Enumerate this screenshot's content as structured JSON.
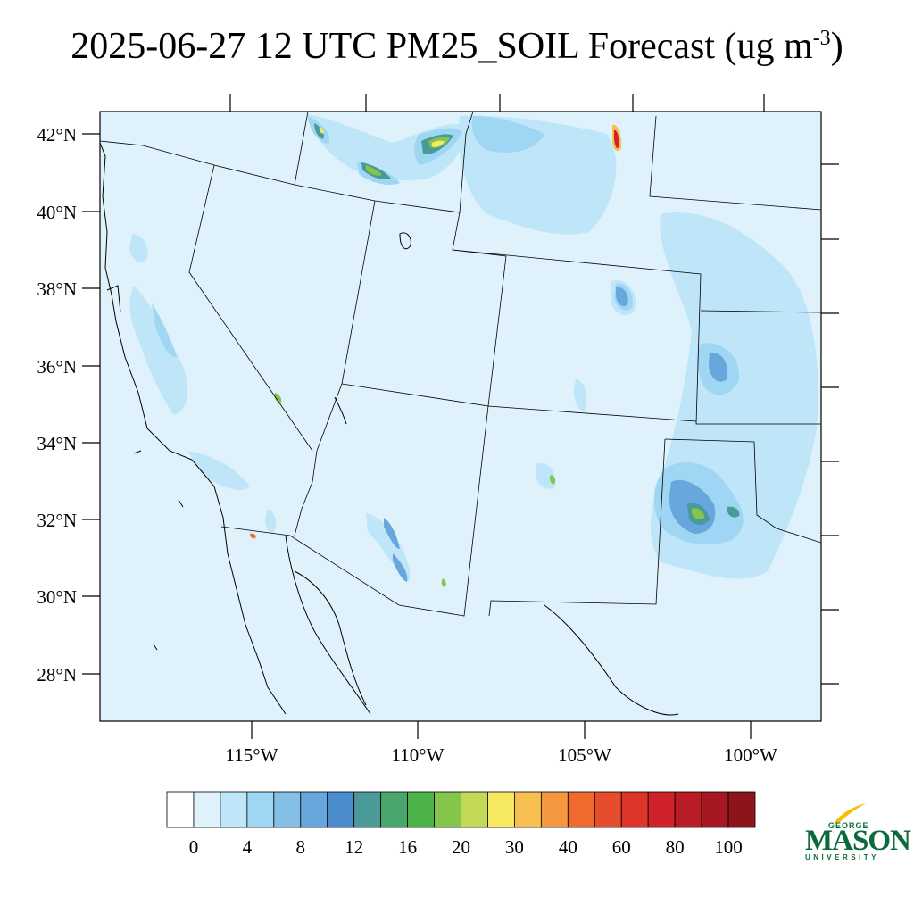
{
  "title": {
    "main": "2025-06-27 12 UTC PM25_SOIL Forecast (ug m",
    "sup": "-3",
    "close": ")"
  },
  "map": {
    "lat_labels": [
      "42°N",
      "40°N",
      "38°N",
      "36°N",
      "34°N",
      "32°N",
      "30°N",
      "28°N"
    ],
    "lon_labels": [
      "115°W",
      "110°W",
      "105°W",
      "100°W"
    ],
    "field_background": "#dff2fb",
    "coast_color": "#000000"
  },
  "colorbar": {
    "colors": [
      "#ffffff",
      "#dff2fb",
      "#bee6f8",
      "#9fd6f3",
      "#84bfe6",
      "#68a7dd",
      "#4a8ccc",
      "#4a9a9a",
      "#49a66d",
      "#4bb348",
      "#85c54c",
      "#c2d958",
      "#f7e960",
      "#f7bf4f",
      "#f5973f",
      "#f06a2e",
      "#e64d2d",
      "#df3428",
      "#d1222b",
      "#b81c24",
      "#a51822",
      "#8e141c"
    ],
    "labels": [
      "0",
      "4",
      "8",
      "12",
      "16",
      "20",
      "30",
      "40",
      "60",
      "80",
      "100"
    ]
  },
  "logo": {
    "top": "GEORGE",
    "main": "MASON",
    "bottom": "UNIVERSITY",
    "color": "#0b6a3a",
    "accent": "#f2c200"
  }
}
